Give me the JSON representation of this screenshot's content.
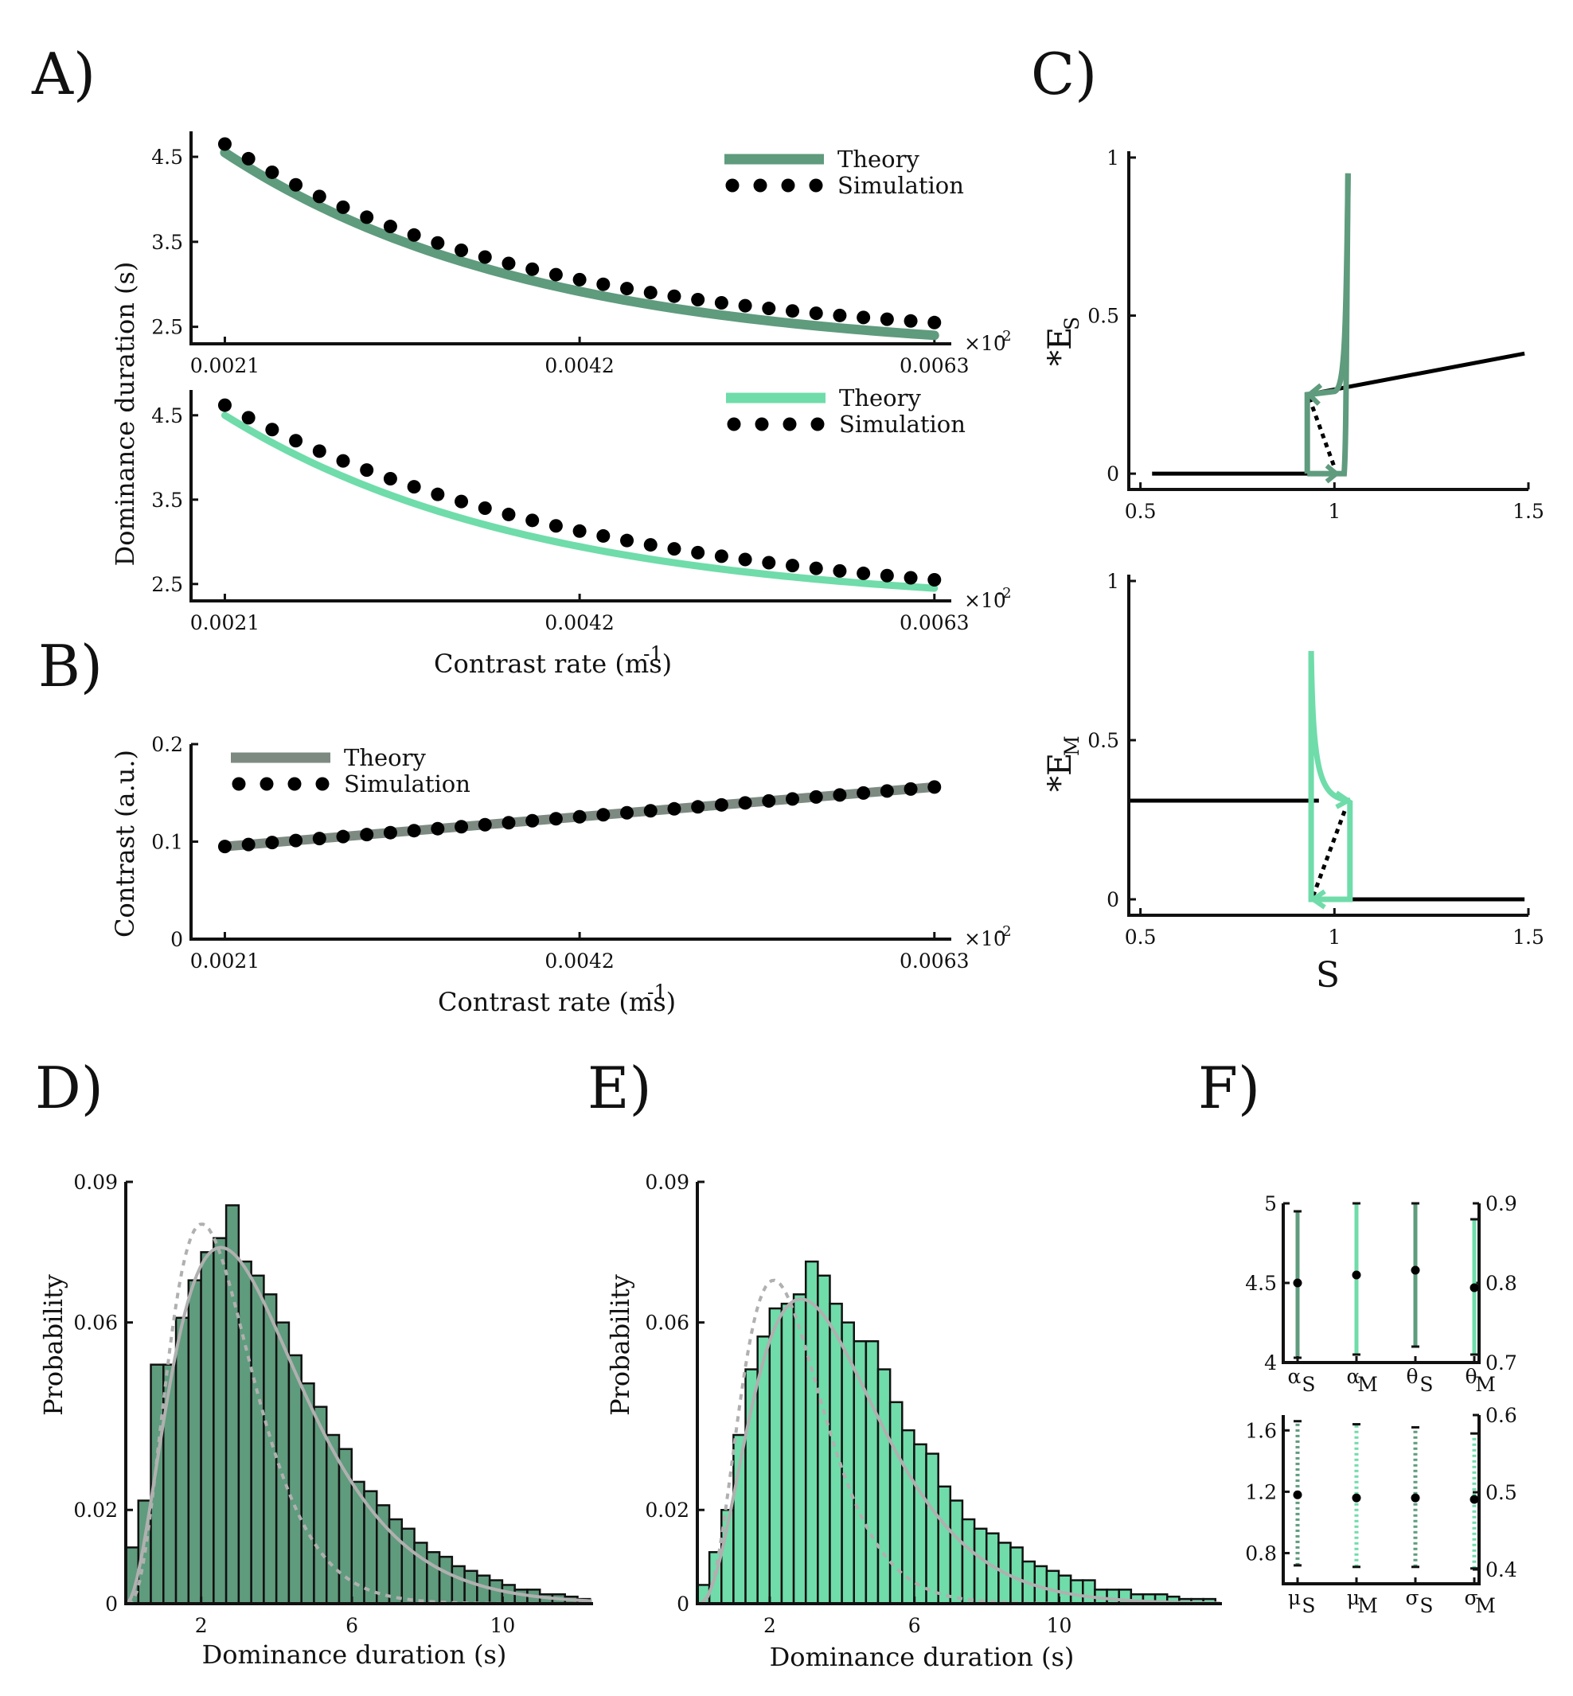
{
  "colors": {
    "dark_green": "#5f9b7d",
    "light_green": "#6fdcaa",
    "gray": "#7d8a82",
    "fit_gray": "#b0b0b0",
    "dot": "#000000"
  },
  "panels": {
    "A": "A)",
    "B": "B)",
    "C": "C)",
    "D": "D)",
    "E": "E)",
    "F": "F)"
  },
  "chart_data": [
    {
      "id": "A1",
      "type": "line",
      "xlabel": "",
      "ylabel": "Dominance duration (s)",
      "x_ticks": [
        "0.0021",
        "0.0042",
        "0.0063"
      ],
      "y_ticks": [
        "2.5",
        "3.5",
        "4.5"
      ],
      "x_multiplier": "×10",
      "x_exponent": "-2",
      "xlim": [
        0.0019,
        0.0064
      ],
      "ylim": [
        2.3,
        4.8
      ],
      "series": [
        {
          "name": "Theory",
          "style": "line",
          "x_range": [
            0.0021,
            0.0063
          ],
          "y_start": 4.55,
          "y_end": 2.4,
          "decay": 2.3
        },
        {
          "name": "Simulation",
          "style": "dots",
          "x_range": [
            0.0021,
            0.0063
          ],
          "n": 31,
          "y_start": 4.65,
          "y_end": 2.55,
          "decay": 2.3
        }
      ]
    },
    {
      "id": "A2",
      "type": "line",
      "xlabel": "Contrast rate (ms)",
      "xlabel_exp": "-1",
      "ylabel": "",
      "x_ticks": [
        "0.0021",
        "0.0042",
        "0.0063"
      ],
      "y_ticks": [
        "2.5",
        "3.5",
        "4.5"
      ],
      "x_multiplier": "×10",
      "x_exponent": "-2",
      "xlim": [
        0.0019,
        0.0064
      ],
      "ylim": [
        2.3,
        4.8
      ],
      "series": [
        {
          "name": "Theory",
          "style": "line",
          "x_range": [
            0.0021,
            0.0063
          ],
          "y_start": 4.5,
          "y_end": 2.45,
          "decay": 2.3
        },
        {
          "name": "Simulation",
          "style": "dots",
          "x_range": [
            0.0021,
            0.0063
          ],
          "n": 31,
          "y_start": 4.62,
          "y_end": 2.55,
          "decay": 1.9
        }
      ]
    },
    {
      "id": "B",
      "type": "line",
      "xlabel": "Contrast rate (ms)",
      "xlabel_exp": "-1",
      "ylabel": "Contrast (a.u.)",
      "x_ticks": [
        "0.0021",
        "0.0042",
        "0.0063"
      ],
      "y_ticks": [
        "0",
        "0.1",
        "0.2"
      ],
      "x_multiplier": "×10",
      "x_exponent": "-2",
      "xlim": [
        0.0019,
        0.0064
      ],
      "ylim": [
        0,
        0.2
      ],
      "series": [
        {
          "name": "Theory",
          "style": "line",
          "x": [
            0.0021,
            0.0063
          ],
          "y": [
            0.095,
            0.156
          ]
        },
        {
          "name": "Simulation",
          "style": "dots",
          "x_range": [
            0.0021,
            0.0063
          ],
          "n": 31,
          "y_start": 0.095,
          "y_end": 0.156
        }
      ]
    },
    {
      "id": "C1",
      "type": "line",
      "xlabel": "",
      "ylabel": "*E",
      "ylabel_sub": "S",
      "x_ticks": [
        "0.5",
        "1",
        "1.5"
      ],
      "y_ticks": [
        "0",
        "0.5",
        "1"
      ],
      "xlim": [
        0.47,
        1.5
      ],
      "ylim": [
        -0.05,
        1.02
      ]
    },
    {
      "id": "C2",
      "type": "line",
      "xlabel": "S",
      "ylabel": "*E",
      "ylabel_sub": "M",
      "x_ticks": [
        "0.5",
        "1",
        "1.5"
      ],
      "y_ticks": [
        "0",
        "0.5",
        "1"
      ],
      "xlim": [
        0.47,
        1.5
      ],
      "ylim": [
        -0.05,
        1.02
      ]
    },
    {
      "id": "D",
      "type": "bar",
      "xlabel": "Dominance duration (s)",
      "ylabel": "Probability",
      "x_ticks": [
        "2",
        "6",
        "10"
      ],
      "y_ticks": [
        "0",
        "0.02",
        "0.06",
        "0.09"
      ],
      "xlim": [
        0,
        12.4
      ],
      "ylim": [
        0,
        0.09
      ],
      "bin_width": 0.333,
      "values": [
        0.012,
        0.022,
        0.051,
        0.051,
        0.061,
        0.069,
        0.075,
        0.078,
        0.085,
        0.073,
        0.07,
        0.066,
        0.06,
        0.053,
        0.047,
        0.042,
        0.036,
        0.033,
        0.026,
        0.024,
        0.021,
        0.018,
        0.016,
        0.013,
        0.011,
        0.01,
        0.008,
        0.007,
        0.006,
        0.005,
        0.004,
        0.003,
        0.003,
        0.002,
        0.002,
        0.0015,
        0.001
      ]
    },
    {
      "id": "E",
      "type": "bar",
      "xlabel": "Dominance duration (s)",
      "ylabel": "Probability",
      "x_ticks": [
        "2",
        "6",
        "10"
      ],
      "y_ticks": [
        "0",
        "0.02",
        "0.06",
        "0.09"
      ],
      "xlim": [
        0,
        14.5
      ],
      "ylim": [
        0,
        0.09
      ],
      "bin_width": 0.333,
      "values": [
        0.004,
        0.011,
        0.02,
        0.036,
        0.05,
        0.057,
        0.063,
        0.064,
        0.066,
        0.073,
        0.07,
        0.064,
        0.06,
        0.056,
        0.056,
        0.05,
        0.043,
        0.037,
        0.034,
        0.032,
        0.025,
        0.022,
        0.018,
        0.016,
        0.015,
        0.013,
        0.012,
        0.009,
        0.008,
        0.007,
        0.006,
        0.005,
        0.005,
        0.003,
        0.003,
        0.003,
        0.002,
        0.002,
        0.002,
        0.0015,
        0.001,
        0.001,
        0.001
      ]
    },
    {
      "id": "F1",
      "type": "scatter",
      "xlabel": "",
      "x_ticks": [
        "α",
        "α",
        "θ",
        "θ"
      ],
      "x_subs": [
        "S",
        "M",
        "S",
        "M"
      ],
      "y_ticks_left": [
        "4",
        "4.5",
        "5"
      ],
      "y_ticks_right": [
        "0.7",
        "0.8",
        "0.9"
      ],
      "ylim": [
        4,
        5
      ],
      "ylim_right": [
        0.7,
        0.9
      ],
      "points": [
        {
          "y": 4.5,
          "lo": 4.03,
          "hi": 4.95,
          "color": "dark",
          "axis": "left"
        },
        {
          "y": 4.55,
          "lo": 4.05,
          "hi": 5.0,
          "color": "light",
          "axis": "left"
        },
        {
          "y": 4.58,
          "lo": 4.1,
          "hi": 5.0,
          "color": "dark",
          "axis": "right"
        },
        {
          "y": 4.47,
          "lo": 4.05,
          "hi": 4.9,
          "color": "light",
          "axis": "right"
        }
      ]
    },
    {
      "id": "F2",
      "type": "scatter",
      "xlabel": "",
      "x_ticks": [
        "μ",
        "μ",
        "σ",
        "σ"
      ],
      "x_subs": [
        "S",
        "M",
        "S",
        "M"
      ],
      "y_ticks_left": [
        "0.8",
        "1.2",
        "1.6"
      ],
      "y_ticks_right": [
        "0.4",
        "0.5",
        "0.6"
      ],
      "ylim": [
        0.6,
        1.7
      ],
      "ylim_right": [
        0.4,
        0.6
      ],
      "points": [
        {
          "y": 1.18,
          "lo": 0.72,
          "hi": 1.66,
          "color": "dark"
        },
        {
          "y": 1.16,
          "lo": 0.71,
          "hi": 1.64,
          "color": "light"
        },
        {
          "y": 1.16,
          "lo": 0.71,
          "hi": 1.62,
          "color": "dark"
        },
        {
          "y": 1.15,
          "lo": 0.7,
          "hi": 1.58,
          "color": "light"
        }
      ]
    }
  ]
}
